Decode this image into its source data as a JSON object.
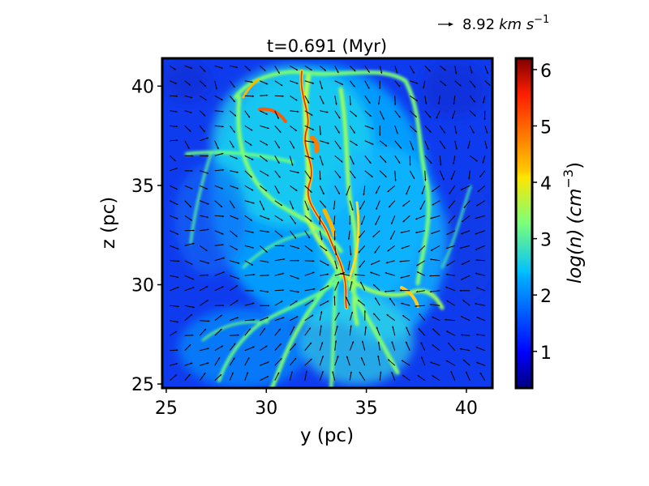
{
  "chart_data": {
    "type": "heatmap",
    "title": "t=0.691 (Myr)",
    "xlabel": "y (pc)",
    "ylabel": "z (pc)",
    "xlim": [
      24.8,
      41.3
    ],
    "ylim": [
      24.8,
      41.4
    ],
    "xticks": [
      25,
      30,
      35,
      40
    ],
    "xtick_labels": [
      "25",
      "30",
      "35",
      "40"
    ],
    "yticks": [
      25,
      30,
      35,
      40
    ],
    "ytick_labels": [
      "25",
      "30",
      "35",
      "40"
    ],
    "colorbar": {
      "label_base": "log(n)",
      "label_unit": "(cm",
      "label_exp": "−3",
      "label_close": ")",
      "colormap": "jet",
      "range": [
        0.35,
        6.2
      ],
      "ticks": [
        1,
        2,
        3,
        4,
        5,
        6
      ],
      "tick_labels": [
        "1",
        "2",
        "3",
        "4",
        "5",
        "6"
      ]
    },
    "quiver_key": {
      "value": "8.92",
      "unit": "km s",
      "unit_exp": "−1"
    },
    "grid": false,
    "colors": {
      "frame": "#000000",
      "arrows": "#000000",
      "background_low": "#0a30e0",
      "filament_mid": "#7fff7a",
      "dense_core": "#d81b00"
    }
  }
}
